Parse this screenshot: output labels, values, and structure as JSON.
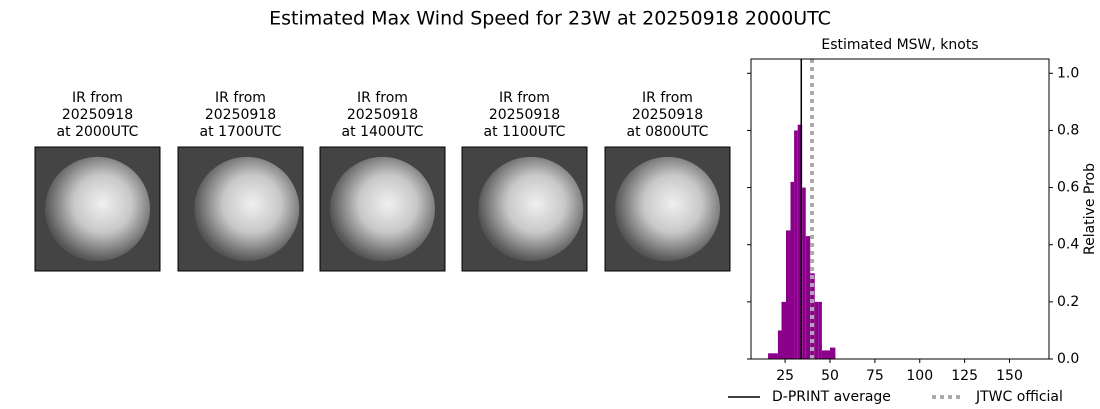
{
  "title": "Estimated Max Wind Speed for 23W at 20250918 2000UTC",
  "panels": [
    {
      "lines": [
        "IR from",
        "20250918",
        "at 2000UTC"
      ]
    },
    {
      "lines": [
        "IR from",
        "20250918",
        "at 1700UTC"
      ]
    },
    {
      "lines": [
        "IR from",
        "20250918",
        "at 1400UTC"
      ]
    },
    {
      "lines": [
        "IR from",
        "20250918",
        "at 1100UTC"
      ]
    },
    {
      "lines": [
        "IR from",
        "20250918",
        "at 0800UTC"
      ]
    }
  ],
  "chart_data": {
    "type": "histogram",
    "title": "Estimated MSW, knots",
    "y_label": "Relative Prob",
    "bins": [
      15.5,
      21,
      23,
      25.5,
      28,
      30,
      32,
      34.5,
      36.5,
      39,
      41.5,
      43.5,
      45.5,
      50,
      53
    ],
    "values": [
      0.02,
      0.1,
      0.2,
      0.45,
      0.62,
      0.8,
      0.82,
      0.6,
      0.43,
      0.3,
      0.2,
      0.2,
      0.03,
      0.04
    ],
    "color": "#8b008b",
    "reference_lines": [
      {
        "name": "D-PRINT average",
        "value": 34,
        "color": "#000000",
        "style": "solid"
      },
      {
        "name": "JTWC official",
        "value": 40,
        "color": "#aaaaaa",
        "style": "dotted"
      }
    ],
    "xlim": [
      6,
      172
    ],
    "ylim": [
      0,
      1.05
    ],
    "xticks": [
      25,
      50,
      75,
      100,
      125,
      150
    ],
    "yticks": [
      {
        "value": 0,
        "label": "0.0"
      },
      {
        "value": 0.2,
        "label": "0.2"
      },
      {
        "value": 0.4,
        "label": "0.4"
      },
      {
        "value": 0.6,
        "label": "0.6"
      },
      {
        "value": 0.8,
        "label": "0.8"
      },
      {
        "value": 1,
        "label": "1.0"
      }
    ],
    "legend": "lower right"
  }
}
